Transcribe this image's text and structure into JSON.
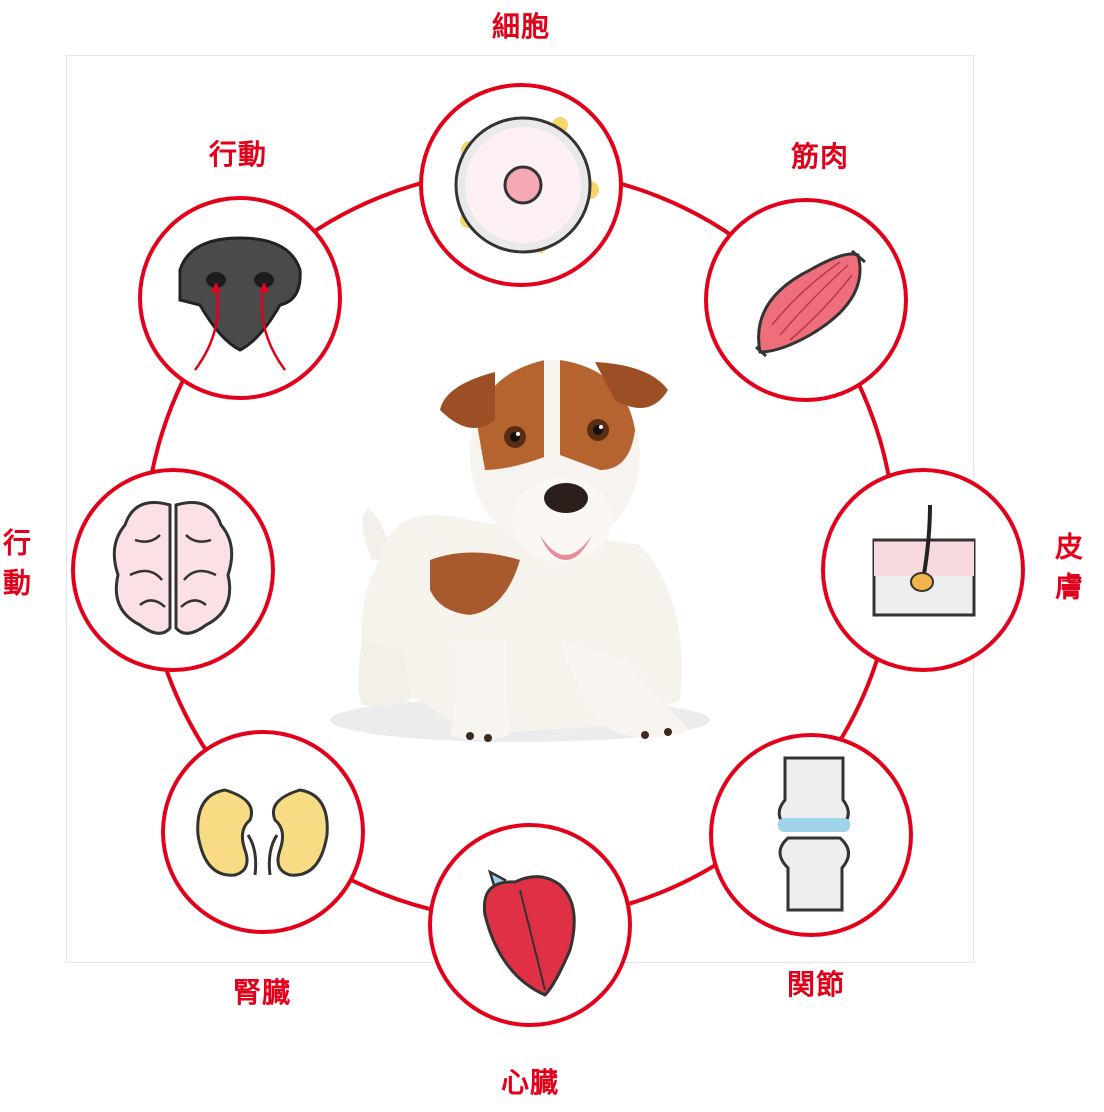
{
  "accent_color": "#e2001a",
  "organs": [
    {
      "id": "cell",
      "label": "細胞",
      "icon": "cell-icon"
    },
    {
      "id": "muscle",
      "label": "筋肉",
      "icon": "muscle-icon"
    },
    {
      "id": "skin",
      "label": "皮膚",
      "icon": "skin-hair-follicle-icon"
    },
    {
      "id": "joint",
      "label": "関節",
      "icon": "knee-joint-icon"
    },
    {
      "id": "heart",
      "label": "心臓",
      "icon": "heart-icon"
    },
    {
      "id": "kidney",
      "label": "腎臓",
      "icon": "kidneys-icon"
    },
    {
      "id": "brain",
      "label": "行動",
      "icon": "brain-icon"
    },
    {
      "id": "nose",
      "label": "行動",
      "icon": "dog-nose-icon"
    }
  ],
  "center_image": "jack-russell-puppy"
}
